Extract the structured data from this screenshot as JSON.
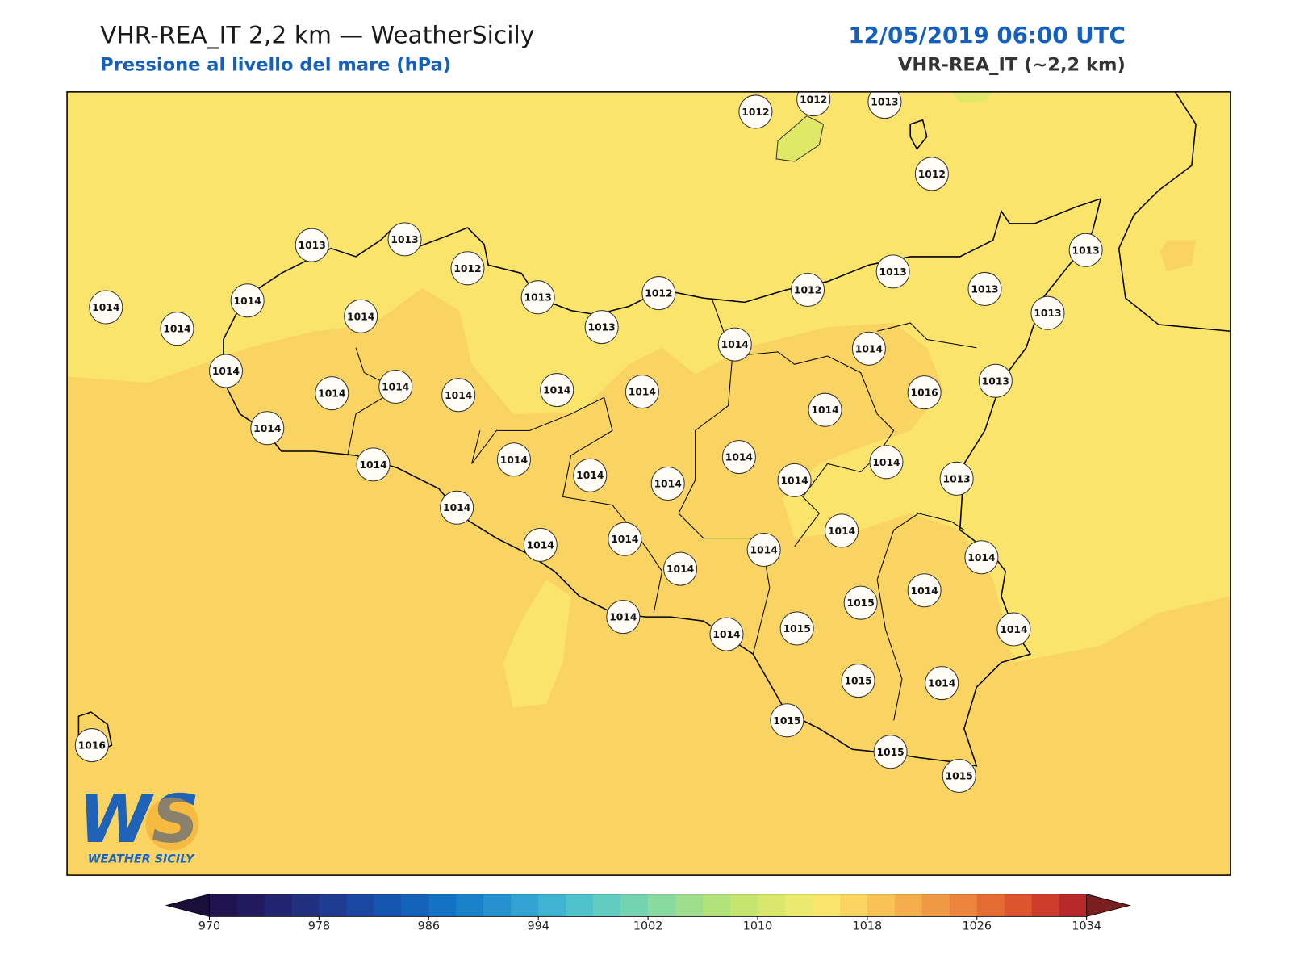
{
  "header": {
    "title": "VHR-REA_IT 2,2 km — WeatherSicily",
    "subtitle": "Pressione al livello del mare (hPa)",
    "datetime": "12/05/2019 06:00 UTC",
    "model": "VHR-REA_IT (~2,2 km)"
  },
  "stations": [
    1012,
    1012,
    1013,
    1012,
    1013,
    1013,
    1012,
    1013,
    1013,
    1012,
    1012,
    1013,
    1013,
    1013,
    1013,
    1014,
    1014,
    1014,
    1014,
    1014,
    1014,
    1014,
    1014,
    1014,
    1014,
    1014,
    1014,
    1016,
    1013,
    1014,
    1014,
    1014,
    1014,
    1014,
    1014,
    1014,
    1014,
    1014,
    1013,
    1014,
    1014,
    1014,
    1014,
    1014,
    1014,
    1014,
    1015,
    1014,
    1014,
    1014,
    1014,
    1015,
    1015,
    1014,
    1015,
    1015,
    1015,
    1016
  ],
  "logo": {
    "mark": "WS",
    "text": "WEATHER SICILY"
  },
  "colorbar": {
    "lim": [
      970,
      1034
    ],
    "ticks": [
      970,
      978,
      986,
      994,
      1002,
      1010,
      1018,
      1026,
      1034
    ],
    "colors": [
      "#1f1450",
      "#221a5e",
      "#23246f",
      "#21307f",
      "#1d3c92",
      "#1a48a2",
      "#1655b0",
      "#1463ba",
      "#1372c4",
      "#1a82cb",
      "#2592cf",
      "#32a3d3",
      "#40b3d2",
      "#50c2cc",
      "#62ccc0",
      "#75d4b0",
      "#89da9f",
      "#9ddf8c",
      "#b2e27a",
      "#c6e56e",
      "#d9e86c",
      "#ebea6e",
      "#fbe46c",
      "#fbd462",
      "#f8c257",
      "#f4ae4c",
      "#f09944",
      "#ec843b",
      "#e56d34",
      "#db552f",
      "#cd3d2c",
      "#b82a29"
    ],
    "under": "#1a0f3a",
    "over": "#7a1f1f"
  }
}
